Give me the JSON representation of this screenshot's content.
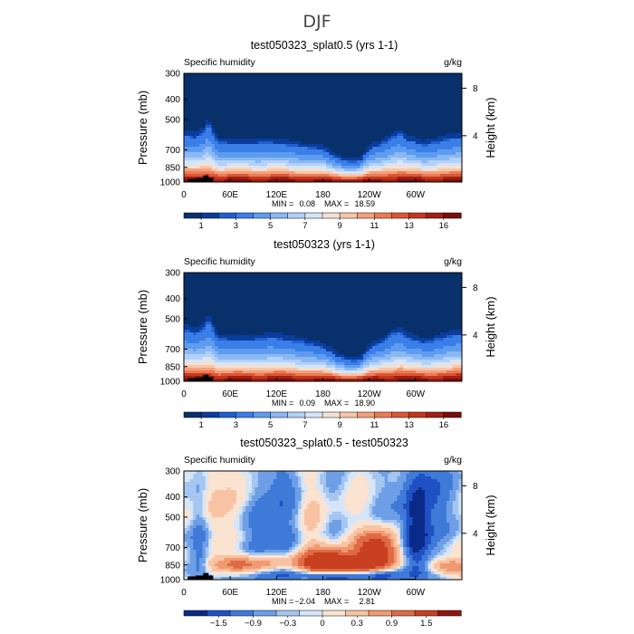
{
  "season": "DJF",
  "colors": {
    "abs_levels": [
      "#08306b",
      "#0b3c9e",
      "#1f5fd0",
      "#3a7ee8",
      "#5f9cf0",
      "#8ab8f5",
      "#b3d1f7",
      "#d4e5f8",
      "#f4e1d2",
      "#f7c6a8",
      "#f4a07c",
      "#ec7b56",
      "#dc5734",
      "#c4381f",
      "#a21f14",
      "#7a0e0b"
    ],
    "diff_levels": [
      "#0a2a8a",
      "#1f51c4",
      "#3f7ad8",
      "#6e9fe6",
      "#a5c6f0",
      "#d6e6f8",
      "#fbe3d2",
      "#f7c3a3",
      "#f09a71",
      "#e06a45",
      "#c8401f",
      "#8f1510"
    ]
  },
  "charts": [
    {
      "title": "test050323_splat0.5 (yrs 1-1)",
      "variable": "Specific humidity",
      "units": "g/kg",
      "stats": {
        "min_label": "MIN =",
        "min": "0.08",
        "max_label": "MAX =",
        "max": "18.59"
      },
      "colorbar_ticks": [
        "1",
        "3",
        "5",
        "7",
        "9",
        "11",
        "13",
        "16"
      ]
    },
    {
      "title": "test050323 (yrs 1-1)",
      "variable": "Specific humidity",
      "units": "g/kg",
      "stats": {
        "min_label": "MIN =",
        "min": "0.09",
        "max_label": "MAX =",
        "max": "18.90"
      },
      "colorbar_ticks": [
        "1",
        "3",
        "5",
        "7",
        "9",
        "11",
        "13",
        "16"
      ]
    },
    {
      "title": "test050323_splat0.5 - test050323",
      "variable": "Specific humidity",
      "units": "g/kg",
      "stats": {
        "min_label": "MIN =",
        "min": "−2.04",
        "max_label": "MAX =",
        "max": "2.81"
      },
      "colorbar_ticks": [
        "−1.5",
        "−0.9",
        "−0.3",
        "0",
        "0.3",
        "0.9",
        "1.5"
      ]
    }
  ],
  "chart_data": [
    {
      "type": "heatmap",
      "title": "test050323_splat0.5 (yrs 1-1)",
      "xlabel": "",
      "ylabel": "Pressure (mb)",
      "y2label": "Height (km)",
      "xticks": [
        "0",
        "60E",
        "120E",
        "180",
        "120W",
        "60W"
      ],
      "xtick_values": [
        0,
        60,
        120,
        180,
        240,
        300
      ],
      "xlim": [
        0,
        360
      ],
      "yticks": [
        "300",
        "400",
        "500",
        "700",
        "850",
        "1000"
      ],
      "ytick_values": [
        300,
        400,
        500,
        700,
        850,
        1000
      ],
      "ylim": [
        1000,
        300
      ],
      "y2ticks": [
        "4",
        "8"
      ],
      "y2tick_values": [
        4,
        8
      ],
      "min": 0.08,
      "max": 18.59,
      "levels": [
        0,
        1,
        2,
        3,
        4,
        5,
        6,
        7,
        8,
        9,
        10,
        11,
        12,
        13,
        14,
        16
      ],
      "profile_lon": [
        0,
        15,
        25,
        32,
        45,
        60,
        90,
        110,
        130,
        160,
        180,
        200,
        220,
        230,
        240,
        260,
        270,
        280,
        290,
        310,
        330,
        360
      ],
      "moist_top_mb": [
        590,
        610,
        580,
        520,
        640,
        650,
        650,
        640,
        660,
        670,
        700,
        770,
        790,
        780,
        700,
        640,
        600,
        580,
        630,
        660,
        630,
        610
      ],
      "topography": [
        [
          5,
          15,
          1000,
          965
        ],
        [
          15,
          25,
          1000,
          955
        ],
        [
          25,
          32,
          1000,
          930
        ],
        [
          32,
          38,
          1000,
          955
        ],
        [
          280,
          300,
          1000,
          990
        ]
      ]
    },
    {
      "type": "heatmap",
      "title": "test050323 (yrs 1-1)",
      "xlabel": "",
      "ylabel": "Pressure (mb)",
      "y2label": "Height (km)",
      "xticks": [
        "0",
        "60E",
        "120E",
        "180",
        "120W",
        "60W"
      ],
      "xtick_values": [
        0,
        60,
        120,
        180,
        240,
        300
      ],
      "xlim": [
        0,
        360
      ],
      "yticks": [
        "300",
        "400",
        "500",
        "700",
        "850",
        "1000"
      ],
      "ytick_values": [
        300,
        400,
        500,
        700,
        850,
        1000
      ],
      "ylim": [
        1000,
        300
      ],
      "y2ticks": [
        "4",
        "8"
      ],
      "y2tick_values": [
        4,
        8
      ],
      "min": 0.09,
      "max": 18.9,
      "levels": [
        0,
        1,
        2,
        3,
        4,
        5,
        6,
        7,
        8,
        9,
        10,
        11,
        12,
        13,
        14,
        16
      ],
      "profile_lon": [
        0,
        15,
        25,
        32,
        45,
        60,
        90,
        110,
        130,
        160,
        180,
        200,
        220,
        230,
        240,
        260,
        270,
        280,
        290,
        310,
        330,
        360
      ],
      "moist_top_mb": [
        560,
        590,
        560,
        500,
        620,
        630,
        630,
        610,
        630,
        650,
        690,
        760,
        790,
        780,
        700,
        630,
        590,
        570,
        620,
        650,
        620,
        590
      ],
      "topography": [
        [
          5,
          15,
          1000,
          965
        ],
        [
          15,
          25,
          1000,
          955
        ],
        [
          25,
          32,
          1000,
          930
        ],
        [
          32,
          38,
          1000,
          955
        ],
        [
          280,
          300,
          1000,
          990
        ]
      ]
    },
    {
      "type": "heatmap",
      "title": "test050323_splat0.5 - test050323",
      "xlabel": "",
      "ylabel": "Pressure (mb)",
      "y2label": "Height (km)",
      "xticks": [
        "0",
        "60E",
        "120E",
        "180",
        "120W",
        "60W"
      ],
      "xtick_values": [
        0,
        60,
        120,
        180,
        240,
        300
      ],
      "xlim": [
        0,
        360
      ],
      "yticks": [
        "300",
        "400",
        "500",
        "700",
        "850",
        "1000"
      ],
      "ytick_values": [
        300,
        400,
        500,
        700,
        850,
        1000
      ],
      "ylim": [
        1000,
        300
      ],
      "y2ticks": [
        "4",
        "8"
      ],
      "y2tick_values": [
        4,
        8
      ],
      "min": -2.04,
      "max": 2.81,
      "levels": [
        -1.5,
        -0.9,
        -0.6,
        -0.3,
        -0.1,
        0,
        0.1,
        0.3,
        0.6,
        0.9,
        1.5
      ],
      "features": [
        {
          "lon": 185,
          "p": 820,
          "amp": 2.6,
          "sx": 20,
          "sp": 70
        },
        {
          "lon": 215,
          "p": 835,
          "amp": 2.0,
          "sx": 30,
          "sp": 45
        },
        {
          "lon": 245,
          "p": 755,
          "amp": 1.7,
          "sx": 16,
          "sp": 90
        },
        {
          "lon": 255,
          "p": 700,
          "amp": 1.1,
          "sx": 18,
          "sp": 90
        },
        {
          "lon": 60,
          "p": 840,
          "amp": 0.9,
          "sx": 28,
          "sp": 60
        },
        {
          "lon": 110,
          "p": 830,
          "amp": 0.7,
          "sx": 30,
          "sp": 60
        },
        {
          "lon": 340,
          "p": 860,
          "amp": 1.0,
          "sx": 20,
          "sp": 50
        },
        {
          "lon": 50,
          "p": 460,
          "amp": 0.5,
          "sx": 30,
          "sp": 200
        },
        {
          "lon": 165,
          "p": 520,
          "amp": 0.5,
          "sx": 15,
          "sp": 200
        },
        {
          "lon": 20,
          "p": 700,
          "amp": -0.8,
          "sx": 10,
          "sp": 300
        },
        {
          "lon": 90,
          "p": 600,
          "amp": -0.7,
          "sx": 15,
          "sp": 250
        },
        {
          "lon": 140,
          "p": 500,
          "amp": -0.5,
          "sx": 20,
          "sp": 250
        },
        {
          "lon": 300,
          "p": 650,
          "amp": -1.2,
          "sx": 12,
          "sp": 250
        },
        {
          "lon": 200,
          "p": 960,
          "amp": -0.9,
          "sx": 60,
          "sp": 40
        },
        {
          "lon": 320,
          "p": 420,
          "amp": -0.4,
          "sx": 30,
          "sp": 150
        }
      ],
      "topography": [
        [
          5,
          15,
          1000,
          965
        ],
        [
          15,
          25,
          1000,
          955
        ],
        [
          25,
          32,
          1000,
          930
        ],
        [
          32,
          38,
          1000,
          955
        ],
        [
          280,
          300,
          1000,
          990
        ]
      ]
    }
  ]
}
